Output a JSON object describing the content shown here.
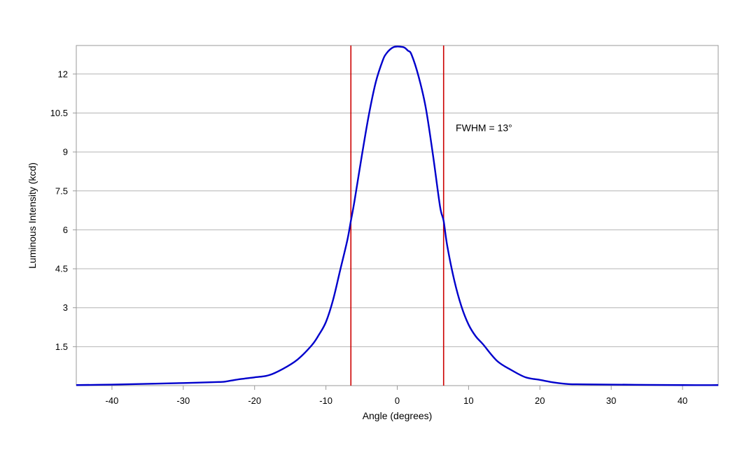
{
  "chart_data": {
    "type": "line",
    "title": "",
    "xlabel": "Angle (degrees)",
    "ylabel": "Luminous Intensity (kcd)",
    "xlim": [
      -45,
      45
    ],
    "ylim": [
      0,
      13.1
    ],
    "x_ticks": [
      -40,
      -30,
      -20,
      -10,
      0,
      10,
      20,
      30,
      40
    ],
    "x_tick_labels": [
      "-40",
      "-30",
      "-20",
      "-10",
      "0",
      "10",
      "20",
      "30",
      "40"
    ],
    "y_ticks": [
      1.5,
      3,
      4.5,
      6,
      7.5,
      9,
      10.5,
      12
    ],
    "y_tick_labels": [
      "1.5",
      "3",
      "4.5",
      "6",
      "7.5",
      "9",
      "10.5",
      "12"
    ],
    "grid": "horizontal",
    "series": [
      {
        "color": "#0000cc",
        "x": [
          -45,
          -40,
          -35,
          -30,
          -25,
          -24,
          -22,
          -20,
          -18,
          -16,
          -14,
          -12,
          -11,
          -10,
          -9,
          -8,
          -7,
          -6.5,
          -6,
          -5,
          -4,
          -3,
          -2,
          -1.5,
          -1,
          -0.5,
          0,
          0.5,
          1,
          1.5,
          2,
          3,
          4,
          5,
          6,
          6.5,
          7,
          8,
          9,
          10,
          11,
          12,
          14,
          16,
          18,
          20,
          22,
          24,
          26,
          30,
          35,
          40,
          45
        ],
        "y": [
          0.02,
          0.04,
          0.07,
          0.1,
          0.14,
          0.16,
          0.25,
          0.32,
          0.4,
          0.65,
          1.0,
          1.55,
          1.95,
          2.45,
          3.3,
          4.45,
          5.6,
          6.35,
          7.1,
          8.8,
          10.4,
          11.7,
          12.55,
          12.8,
          12.95,
          13.04,
          13.06,
          13.05,
          13.02,
          12.9,
          12.75,
          11.9,
          10.7,
          8.9,
          6.9,
          6.35,
          5.4,
          4.05,
          3.05,
          2.35,
          1.9,
          1.6,
          0.95,
          0.6,
          0.32,
          0.22,
          0.12,
          0.06,
          0.05,
          0.04,
          0.03,
          0.02,
          0.02
        ]
      }
    ],
    "markers": [
      {
        "x": -6.5,
        "color": "#cc0000"
      },
      {
        "x": 6.5,
        "color": "#cc0000"
      }
    ],
    "annotations": [
      {
        "text": "FWHM = 13°",
        "x": 8.2,
        "y": 9.8
      }
    ]
  }
}
